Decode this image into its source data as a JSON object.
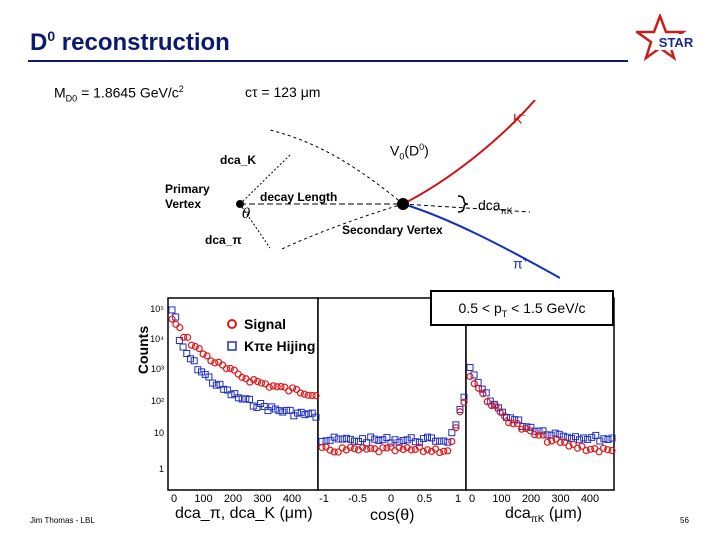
{
  "title": {
    "text": "D",
    "sup": "0",
    "rest": " reconstruction"
  },
  "logo": {
    "text": "STAR",
    "color": "#c81e1e"
  },
  "physics": {
    "mass_label": "M",
    "mass_sub": "D0",
    "mass_value": " =  1.8645 GeV/c",
    "mass_sup": "2",
    "ctau_label": "cτ  =  123 μm"
  },
  "diagram": {
    "k_label": "K",
    "k_sup": "-",
    "pi_label": "π",
    "pi_sup": "+",
    "v0_label": "V",
    "v0_sub": "0",
    "v0_paren": "(D",
    "v0_sup": "0",
    "v0_close": ")",
    "dca_k": "dca_K",
    "dca_pi": "dca_π",
    "primary1": "Primary",
    "primary2": "Vertex",
    "decay_length": "decay Length",
    "theta": "θ",
    "secondary": "Secondary Vertex",
    "dca_pik": "dca",
    "dca_pik_sub": "πK",
    "colors": {
      "k_track": "#d01010",
      "pi_track": "#1030c0"
    }
  },
  "pt_range": {
    "text": "0.5 < p",
    "sub": "T",
    "rest": " < 1.5 GeV/c"
  },
  "plot": {
    "ylabel": "Counts",
    "legend_signal": "Signal",
    "legend_bkg": "Kπe Hijing",
    "yticks": [
      "10⁵",
      "10⁴",
      "10³",
      "10²",
      "10",
      "1"
    ],
    "panel1_xticks": [
      "0",
      "100",
      "200",
      "300",
      "400"
    ],
    "panel2_xticks": [
      "-1",
      "-0.5",
      "0",
      "0.5",
      "1"
    ],
    "panel3_xticks": [
      "0",
      "100",
      "200",
      "300",
      "400"
    ],
    "xlabel_dca": "dca_π, dca_K (μm)",
    "xlabel_cos": "cos(θ)",
    "xlabel_dcak_main": "dca",
    "xlabel_dcak_sub": "πK",
    "xlabel_dcak_rest": " (μm)",
    "colors": {
      "signal": "#e01818",
      "bkg": "#2030c0"
    }
  },
  "footer": {
    "author": "Jim Thomas - LBL",
    "page": "56"
  }
}
